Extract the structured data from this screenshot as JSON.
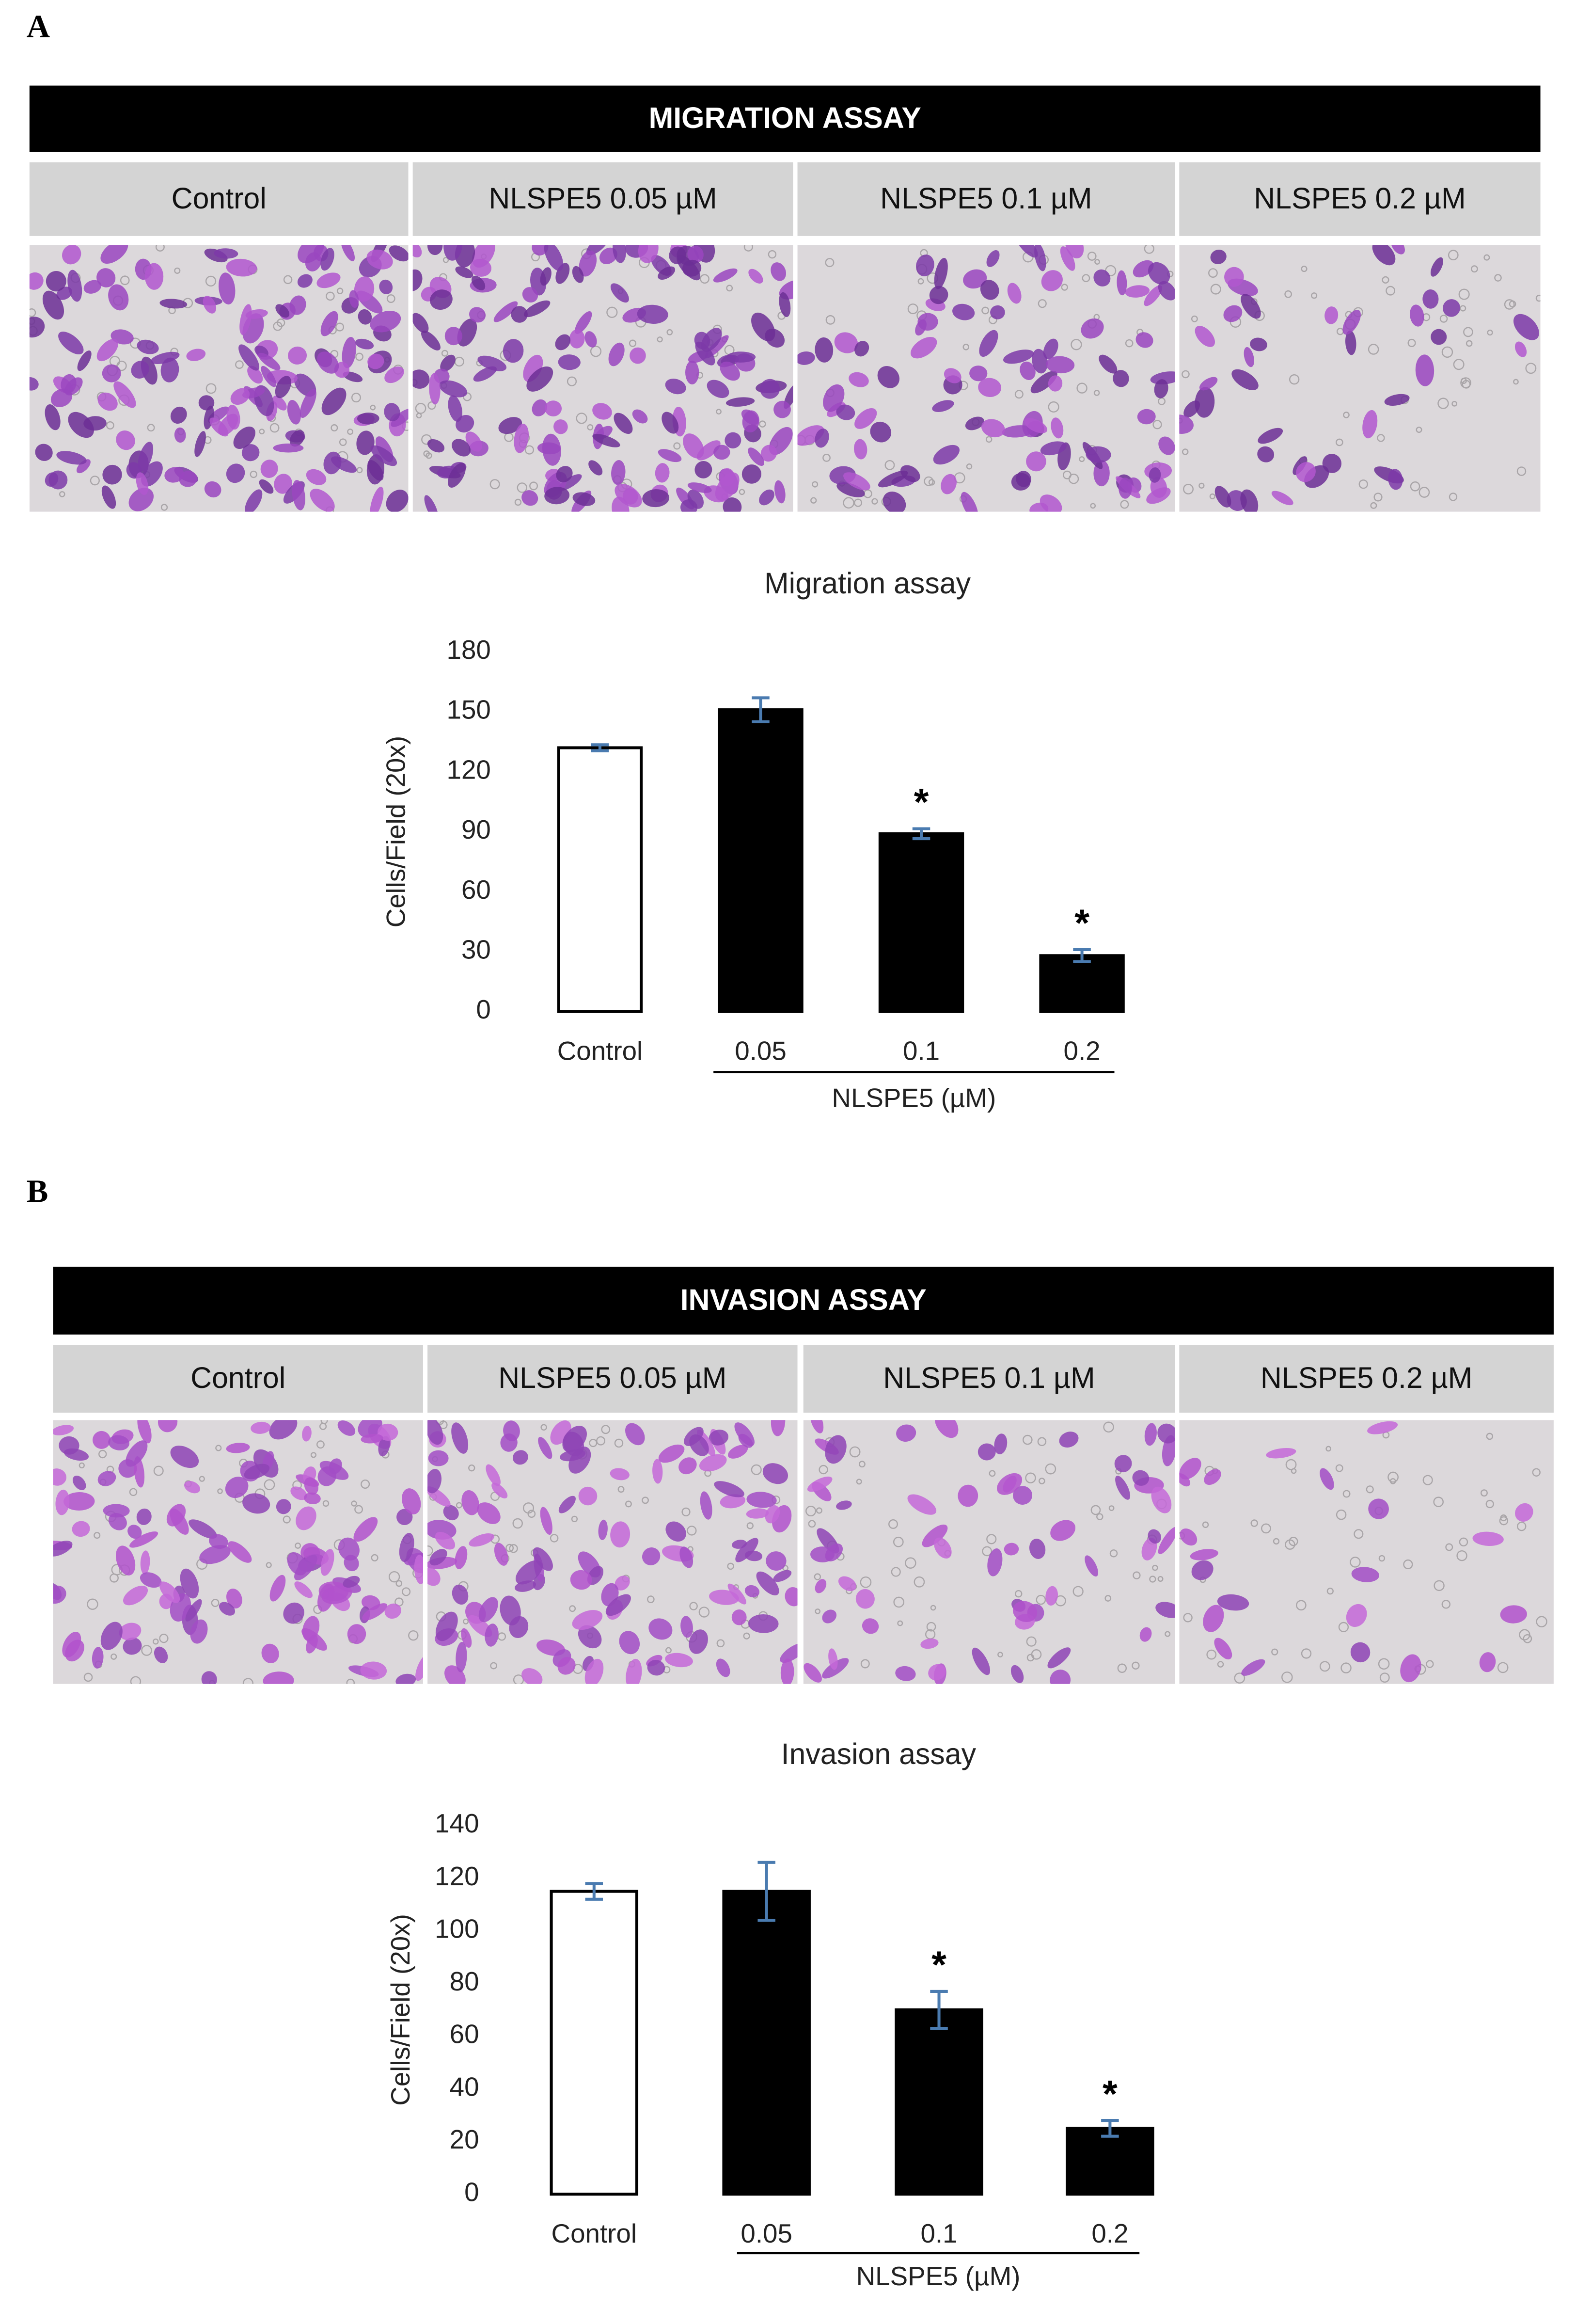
{
  "panels": [
    {
      "label": "A",
      "header": "MIGRATION ASSAY",
      "columns": [
        "Control",
        "NLSPE5 0.05 µM",
        "NLSPE5 0.1 µM",
        "NLSPE5 0.2 µM"
      ]
    },
    {
      "label": "B",
      "header": "INVASION ASSAY",
      "columns": [
        "Control",
        "NLSPE5 0.05 µM",
        "NLSPE5 0.1 µM",
        "NLSPE5 0.2 µM"
      ]
    }
  ],
  "chart_data": [
    {
      "type": "bar",
      "title": "Migration assay",
      "y_label": "Cells/Field (20x)",
      "categories": [
        "Control",
        "0.05",
        "0.1",
        "0.2"
      ],
      "group_label": "NLSPE5 (µM)",
      "values": [
        132,
        151,
        89,
        28
      ],
      "errors": [
        1.5,
        6,
        2.5,
        3
      ],
      "significance": [
        null,
        null,
        "*",
        "*"
      ],
      "colors": [
        "#ffffff",
        "#000000",
        "#000000",
        "#000000"
      ],
      "edge_color": "#000000",
      "error_color": "#4a7bb0",
      "ylim": [
        0,
        180
      ],
      "yticks": [
        0,
        30,
        60,
        90,
        120,
        150,
        180
      ],
      "grid": false
    },
    {
      "type": "bar",
      "title": "Invasion assay",
      "y_label": "Cells/Field (20x)",
      "categories": [
        "Control",
        "0.05",
        "0.1",
        "0.2"
      ],
      "group_label": "NLSPE5 (µM)",
      "values": [
        115,
        115,
        70,
        25
      ],
      "errors": [
        3,
        11,
        7,
        3
      ],
      "significance": [
        null,
        null,
        "*",
        "*"
      ],
      "colors": [
        "#ffffff",
        "#000000",
        "#000000",
        "#000000"
      ],
      "edge_color": "#000000",
      "error_color": "#4a7bb0",
      "ylim": [
        0,
        140
      ],
      "yticks": [
        0,
        20,
        40,
        60,
        80,
        100,
        120,
        140
      ],
      "grid": false
    }
  ]
}
